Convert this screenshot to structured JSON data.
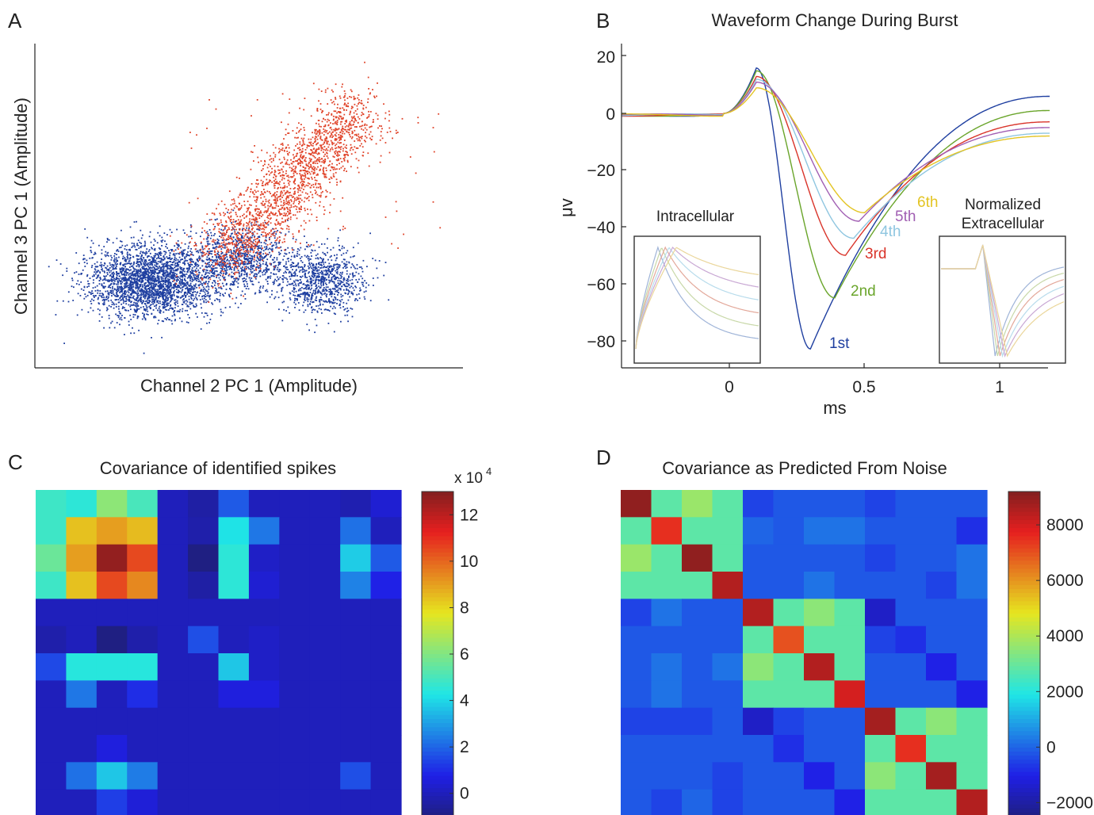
{
  "chart_data": [
    {
      "panel": "A",
      "type": "scatter",
      "title": "",
      "xlabel": "Channel 2 PC 1 (Amplitude)",
      "ylabel": "Channel 3 PC 1 (Amplitude)",
      "grid": false,
      "series": [
        {
          "color": "#1f3fa0",
          "clusters": [
            {
              "cx": 0.27,
              "cy": 0.27,
              "sx": 0.075,
              "sy": 0.055,
              "n": 2600
            },
            {
              "cx": 0.48,
              "cy": 0.34,
              "sx": 0.055,
              "sy": 0.05,
              "n": 900
            },
            {
              "cx": 0.67,
              "cy": 0.27,
              "sx": 0.05,
              "sy": 0.05,
              "n": 900
            }
          ]
        },
        {
          "color": "#e0442a",
          "band": {
            "x_from": 0.42,
            "y_from": 0.32,
            "x_to": 0.76,
            "y_to": 0.8,
            "spread": 0.05,
            "n": 1900
          }
        }
      ]
    },
    {
      "panel": "B",
      "type": "line",
      "title": "Waveform Change During Burst",
      "xlabel": "ms",
      "ylabel": "μv",
      "xlim": [
        -0.4,
        1.2
      ],
      "ylim": [
        -90,
        25
      ],
      "xticks": [
        "0",
        "0.5",
        "1"
      ],
      "yticks": [
        "20",
        "0",
        "−20",
        "−40",
        "−60",
        "−80"
      ],
      "series": [
        {
          "label": "1st",
          "color": "#1f3fa0",
          "peak": 16,
          "trough": -83,
          "t_trough": 0.3,
          "end": 6
        },
        {
          "label": "2nd",
          "color": "#6aa52b",
          "peak": 15,
          "trough": -65,
          "t_trough": 0.39,
          "end": 1
        },
        {
          "label": "3rd",
          "color": "#d9342a",
          "peak": 13,
          "trough": -50,
          "t_trough": 0.43,
          "end": -3
        },
        {
          "label": "4th",
          "color": "#8fc6e0",
          "peak": 12,
          "trough": -44,
          "t_trough": 0.46,
          "end": -7
        },
        {
          "label": "5th",
          "color": "#a15fb3",
          "peak": 11,
          "trough": -38,
          "t_trough": 0.48,
          "end": -5
        },
        {
          "label": "6th",
          "color": "#e3c423",
          "peak": 9,
          "trough": -35,
          "t_trough": 0.5,
          "end": -8
        }
      ],
      "insets": [
        {
          "label": "Intracellular"
        },
        {
          "label": "Normalized Extracellular"
        }
      ]
    },
    {
      "panel": "C",
      "type": "heatmap",
      "title": "Covariance of identified spikes",
      "colorbar": {
        "ticks": [
          "0",
          "2",
          "4",
          "6",
          "8",
          "10",
          "12"
        ],
        "multiplier": "x 10",
        "exponent": "4",
        "min": -1,
        "max": 13
      },
      "values": [
        [
          4.8,
          4.5,
          6.2,
          5.0,
          0,
          -0.4,
          1.8,
          0,
          0,
          0,
          -0.2,
          0.4
        ],
        [
          4.8,
          8.4,
          9.0,
          8.5,
          0,
          -0.3,
          4.2,
          2.3,
          0,
          0,
          2.2,
          0
        ],
        [
          5.6,
          9.0,
          12.7,
          10.5,
          0,
          -1.0,
          4.5,
          0.2,
          0,
          0,
          3.8,
          1.8
        ],
        [
          4.8,
          8.4,
          10.5,
          9.4,
          0,
          -0.4,
          4.5,
          0.4,
          0,
          0,
          2.5,
          0.8
        ],
        [
          0,
          0,
          0,
          0,
          0,
          0,
          0,
          0,
          0,
          0,
          0,
          0
        ],
        [
          -0.3,
          0,
          -1.3,
          -0.3,
          0,
          1.6,
          0,
          0.2,
          0,
          0,
          0,
          0
        ],
        [
          1.5,
          4.4,
          4.4,
          4.4,
          0,
          0,
          3.7,
          0.2,
          0,
          0,
          0,
          0
        ],
        [
          0,
          2.3,
          0,
          1.0,
          0,
          0,
          0.6,
          0.6,
          0,
          0,
          0,
          0
        ],
        [
          0,
          0,
          0,
          0,
          0,
          0,
          0,
          0,
          0,
          0,
          0,
          0
        ],
        [
          0,
          0,
          0.6,
          0,
          0,
          0,
          0,
          0,
          0,
          0,
          0,
          0
        ],
        [
          0,
          2.2,
          3.7,
          2.4,
          0,
          0,
          0,
          0,
          0,
          0,
          1.6,
          0
        ],
        [
          0,
          0,
          1.3,
          0.5,
          0,
          0,
          0,
          0,
          0,
          0,
          0,
          0
        ]
      ]
    },
    {
      "panel": "D",
      "type": "heatmap",
      "title": "Covariance as Predicted From Noise",
      "colorbar": {
        "ticks": [
          "−2000",
          "0",
          "2000",
          "4000",
          "6000",
          "8000"
        ],
        "min": -2500,
        "max": 9200
      },
      "values": [
        [
          9000,
          2800,
          3700,
          2800,
          -500,
          -200,
          -200,
          -200,
          -500,
          -200,
          -200,
          -200
        ],
        [
          2800,
          7500,
          2800,
          2800,
          0,
          -200,
          200,
          200,
          -200,
          -200,
          -200,
          -800
        ],
        [
          3700,
          2800,
          9000,
          2800,
          -200,
          -200,
          -200,
          -200,
          -500,
          -200,
          -200,
          200
        ],
        [
          2800,
          2800,
          2800,
          8500,
          -200,
          -200,
          200,
          -200,
          -200,
          -200,
          -500,
          200
        ],
        [
          -500,
          200,
          -200,
          -200,
          8500,
          2800,
          3500,
          2800,
          -1500,
          -200,
          -200,
          -200
        ],
        [
          -200,
          -200,
          -200,
          -200,
          2800,
          7000,
          2800,
          2800,
          -500,
          -800,
          -200,
          -200
        ],
        [
          -200,
          200,
          -200,
          200,
          3500,
          2800,
          8500,
          2800,
          -200,
          -200,
          -1000,
          -200
        ],
        [
          -200,
          200,
          -200,
          -200,
          2800,
          2800,
          2800,
          8000,
          -200,
          -200,
          -200,
          -1000
        ],
        [
          -500,
          -500,
          -500,
          -200,
          -1500,
          -500,
          -200,
          -200,
          8700,
          2800,
          3500,
          2800
        ],
        [
          -200,
          -200,
          -200,
          -200,
          -200,
          -800,
          -200,
          -200,
          2800,
          7500,
          2800,
          2800
        ],
        [
          -200,
          -200,
          -200,
          -500,
          -200,
          -200,
          -1000,
          -200,
          3500,
          2800,
          8700,
          2800
        ],
        [
          -200,
          -500,
          0,
          -500,
          -200,
          -200,
          -200,
          -1000,
          2800,
          2800,
          2800,
          8500
        ]
      ]
    }
  ]
}
